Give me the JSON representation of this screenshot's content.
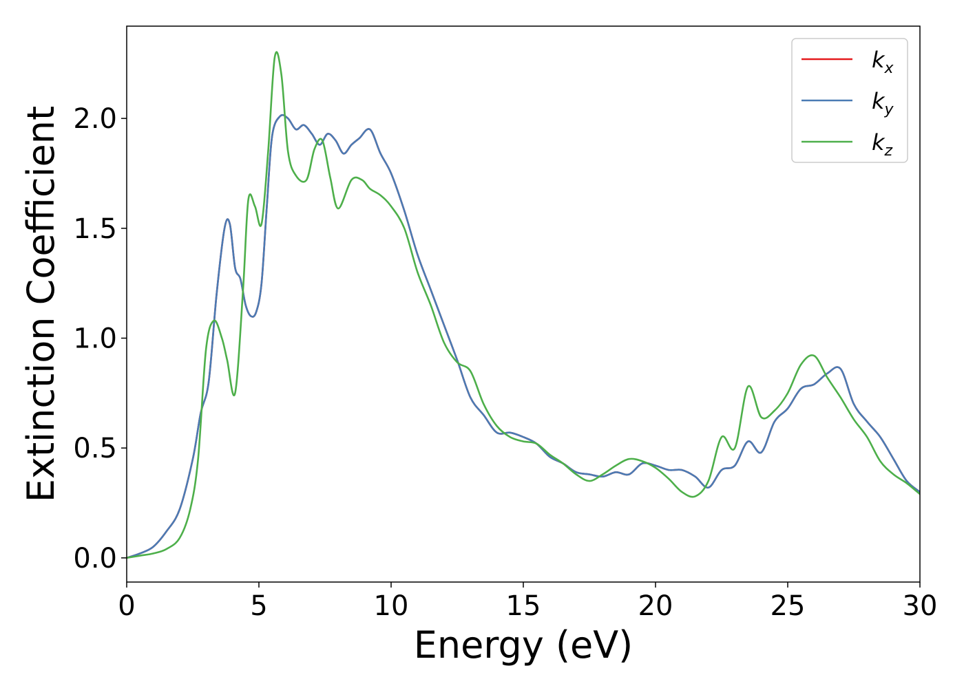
{
  "chart_data": {
    "type": "line",
    "title": "",
    "xlabel": "Energy (eV)",
    "ylabel": "Extinction Coefficient",
    "xlim": [
      0,
      30
    ],
    "ylim": [
      -0.11,
      2.42
    ],
    "xticks": [
      0,
      5,
      10,
      15,
      20,
      25,
      30
    ],
    "xtick_labels": [
      "0",
      "5",
      "10",
      "15",
      "20",
      "25",
      "30"
    ],
    "yticks": [
      0.0,
      0.5,
      1.0,
      1.5,
      2.0
    ],
    "ytick_labels": [
      "0.0",
      "0.5",
      "1.0",
      "1.5",
      "2.0"
    ],
    "grid": false,
    "legend_position": "top-right",
    "series": [
      {
        "name": "k_x",
        "legend_base": "k",
        "legend_sub": "x",
        "color": "#e41a1c",
        "x": [
          0,
          0.5,
          1,
          1.5,
          2,
          2.5,
          2.8,
          3.1,
          3.4,
          3.7,
          3.9,
          4.1,
          4.3,
          4.5,
          4.7,
          4.9,
          5.1,
          5.3,
          5.5,
          5.8,
          6.1,
          6.4,
          6.7,
          7,
          7.3,
          7.6,
          7.9,
          8.2,
          8.5,
          8.8,
          9.2,
          9.6,
          10,
          10.5,
          11,
          11.5,
          12,
          12.5,
          13,
          13.5,
          14,
          14.5,
          15,
          15.5,
          16,
          16.5,
          17,
          17.5,
          18,
          18.5,
          19,
          19.5,
          20,
          20.5,
          21,
          21.5,
          22,
          22.5,
          23,
          23.5,
          24,
          24.5,
          25,
          25.5,
          26,
          26.5,
          27,
          27.5,
          28,
          28.5,
          29,
          29.5,
          30
        ],
        "y": [
          0,
          0.02,
          0.05,
          0.12,
          0.22,
          0.45,
          0.66,
          0.8,
          1.2,
          1.5,
          1.52,
          1.32,
          1.27,
          1.15,
          1.1,
          1.12,
          1.25,
          1.6,
          1.92,
          2.01,
          2.0,
          1.95,
          1.97,
          1.93,
          1.88,
          1.93,
          1.9,
          1.84,
          1.88,
          1.91,
          1.95,
          1.84,
          1.75,
          1.58,
          1.38,
          1.22,
          1.06,
          0.9,
          0.73,
          0.65,
          0.57,
          0.57,
          0.55,
          0.52,
          0.46,
          0.43,
          0.39,
          0.38,
          0.37,
          0.39,
          0.38,
          0.43,
          0.42,
          0.4,
          0.4,
          0.37,
          0.32,
          0.4,
          0.42,
          0.53,
          0.48,
          0.62,
          0.68,
          0.77,
          0.79,
          0.84,
          0.86,
          0.7,
          0.62,
          0.55,
          0.45,
          0.35,
          0.3
        ]
      },
      {
        "name": "k_y",
        "legend_base": "k",
        "legend_sub": "y",
        "color": "#4a7bb4",
        "x": [
          0,
          0.5,
          1,
          1.5,
          2,
          2.5,
          2.8,
          3.1,
          3.4,
          3.7,
          3.9,
          4.1,
          4.3,
          4.5,
          4.7,
          4.9,
          5.1,
          5.3,
          5.5,
          5.8,
          6.1,
          6.4,
          6.7,
          7,
          7.3,
          7.6,
          7.9,
          8.2,
          8.5,
          8.8,
          9.2,
          9.6,
          10,
          10.5,
          11,
          11.5,
          12,
          12.5,
          13,
          13.5,
          14,
          14.5,
          15,
          15.5,
          16,
          16.5,
          17,
          17.5,
          18,
          18.5,
          19,
          19.5,
          20,
          20.5,
          21,
          21.5,
          22,
          22.5,
          23,
          23.5,
          24,
          24.5,
          25,
          25.5,
          26,
          26.5,
          27,
          27.5,
          28,
          28.5,
          29,
          29.5,
          30
        ],
        "y": [
          0,
          0.02,
          0.05,
          0.12,
          0.22,
          0.45,
          0.66,
          0.8,
          1.2,
          1.5,
          1.52,
          1.32,
          1.27,
          1.15,
          1.1,
          1.12,
          1.25,
          1.6,
          1.92,
          2.01,
          2.0,
          1.95,
          1.97,
          1.93,
          1.88,
          1.93,
          1.9,
          1.84,
          1.88,
          1.91,
          1.95,
          1.84,
          1.75,
          1.58,
          1.38,
          1.22,
          1.06,
          0.9,
          0.73,
          0.65,
          0.57,
          0.57,
          0.55,
          0.52,
          0.46,
          0.43,
          0.39,
          0.38,
          0.37,
          0.39,
          0.38,
          0.43,
          0.42,
          0.4,
          0.4,
          0.37,
          0.32,
          0.4,
          0.42,
          0.53,
          0.48,
          0.62,
          0.68,
          0.77,
          0.79,
          0.84,
          0.86,
          0.7,
          0.62,
          0.55,
          0.45,
          0.35,
          0.3
        ]
      },
      {
        "name": "k_z",
        "legend_base": "k",
        "legend_sub": "z",
        "color": "#4daf4a",
        "x": [
          0,
          0.5,
          1,
          1.5,
          2,
          2.4,
          2.7,
          3,
          3.3,
          3.6,
          3.8,
          4.1,
          4.4,
          4.6,
          4.85,
          5.1,
          5.35,
          5.6,
          5.85,
          6.1,
          6.4,
          6.8,
          7.1,
          7.4,
          7.7,
          8,
          8.5,
          8.9,
          9.2,
          9.6,
          10,
          10.5,
          11,
          11.5,
          12,
          12.5,
          13,
          13.5,
          14,
          14.5,
          15,
          15.5,
          16,
          16.5,
          17,
          17.5,
          18,
          18.5,
          19,
          19.5,
          20,
          20.5,
          21,
          21.5,
          22,
          22.5,
          23,
          23.5,
          24,
          24.5,
          25,
          25.5,
          26,
          26.5,
          27,
          27.5,
          28,
          28.5,
          29,
          29.5,
          30
        ],
        "y": [
          0,
          0.01,
          0.02,
          0.04,
          0.09,
          0.22,
          0.45,
          0.95,
          1.08,
          1.0,
          0.9,
          0.75,
          1.22,
          1.63,
          1.6,
          1.52,
          1.85,
          2.28,
          2.2,
          1.85,
          1.74,
          1.72,
          1.86,
          1.9,
          1.73,
          1.59,
          1.72,
          1.72,
          1.68,
          1.65,
          1.6,
          1.5,
          1.3,
          1.15,
          0.98,
          0.89,
          0.85,
          0.7,
          0.6,
          0.55,
          0.53,
          0.52,
          0.47,
          0.43,
          0.38,
          0.35,
          0.38,
          0.42,
          0.45,
          0.44,
          0.41,
          0.36,
          0.3,
          0.28,
          0.35,
          0.55,
          0.5,
          0.78,
          0.64,
          0.67,
          0.75,
          0.88,
          0.92,
          0.82,
          0.73,
          0.63,
          0.55,
          0.44,
          0.38,
          0.34,
          0.29
        ]
      }
    ]
  }
}
